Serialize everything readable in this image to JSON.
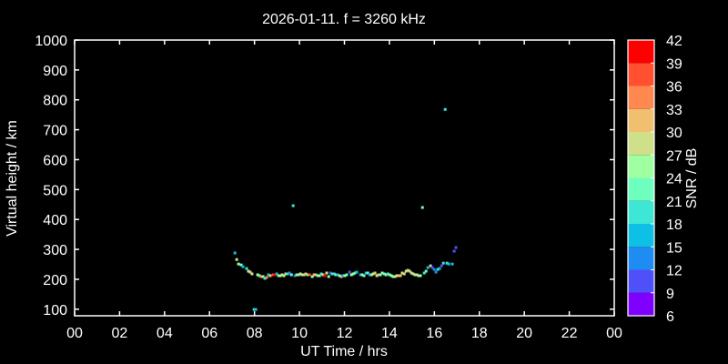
{
  "chart_data": {
    "type": "scatter",
    "title": "2026-01-11. f = 3260 kHz",
    "xlabel": "UT Time / hrs",
    "ylabel": "Virtual height / km",
    "xlim": [
      0,
      24
    ],
    "ylim": [
      78,
      1000
    ],
    "xticks": [
      "00",
      "02",
      "04",
      "06",
      "08",
      "10",
      "12",
      "14",
      "16",
      "18",
      "20",
      "22",
      "00"
    ],
    "yticks": [
      100,
      200,
      300,
      400,
      500,
      600,
      700,
      800,
      900,
      1000
    ],
    "grid": false,
    "colorbar": {
      "label": "SNR / dB",
      "ticks": [
        6,
        9,
        12,
        15,
        18,
        21,
        24,
        27,
        30,
        33,
        36,
        39,
        42
      ],
      "colors": [
        "#8000ff",
        "#5050fa",
        "#1e8cf0",
        "#0ec0e6",
        "#3ee6d6",
        "#6effbe",
        "#a0ffa0",
        "#d0e08a",
        "#f0c070",
        "#ff8850",
        "#ff5030",
        "#ff0000"
      ]
    },
    "points_columns": [
      "hour",
      "height_km",
      "snr_db"
    ],
    "points": [
      [
        7.13,
        288,
        16
      ],
      [
        7.21,
        266,
        28
      ],
      [
        7.29,
        251,
        25
      ],
      [
        7.41,
        248,
        22
      ],
      [
        7.49,
        242,
        16
      ],
      [
        7.65,
        236,
        19
      ],
      [
        7.73,
        227,
        25
      ],
      [
        7.81,
        224,
        31
      ],
      [
        7.89,
        218,
        28
      ],
      [
        8.14,
        215,
        25
      ],
      [
        8.22,
        212,
        22
      ],
      [
        8.3,
        209,
        34
      ],
      [
        8.38,
        209,
        25
      ],
      [
        8.46,
        203,
        19
      ],
      [
        8.54,
        206,
        34
      ],
      [
        8.62,
        215,
        16
      ],
      [
        8.7,
        212,
        31
      ],
      [
        8.83,
        215,
        37
      ],
      [
        8.9,
        215,
        40
      ],
      [
        8.99,
        218,
        16
      ],
      [
        9.07,
        212,
        28
      ],
      [
        9.15,
        212,
        25
      ],
      [
        9.23,
        215,
        28
      ],
      [
        9.31,
        212,
        25
      ],
      [
        9.39,
        218,
        28
      ],
      [
        9.47,
        218,
        19
      ],
      [
        9.55,
        221,
        13
      ],
      [
        9.64,
        215,
        22
      ],
      [
        9.8,
        212,
        13
      ],
      [
        9.88,
        215,
        22
      ],
      [
        9.96,
        215,
        28
      ],
      [
        10.04,
        218,
        25
      ],
      [
        10.12,
        215,
        28
      ],
      [
        10.2,
        215,
        28
      ],
      [
        10.28,
        218,
        31
      ],
      [
        10.36,
        215,
        22
      ],
      [
        10.45,
        215,
        37
      ],
      [
        10.57,
        209,
        25
      ],
      [
        10.65,
        215,
        31
      ],
      [
        10.73,
        215,
        31
      ],
      [
        10.81,
        212,
        22
      ],
      [
        10.89,
        212,
        25
      ],
      [
        10.97,
        218,
        19
      ],
      [
        11.05,
        215,
        28
      ],
      [
        11.13,
        212,
        40
      ],
      [
        11.21,
        221,
        28
      ],
      [
        11.3,
        209,
        25
      ],
      [
        11.38,
        221,
        10
      ],
      [
        11.46,
        218,
        19
      ],
      [
        11.54,
        218,
        19
      ],
      [
        11.62,
        215,
        22
      ],
      [
        11.7,
        215,
        16
      ],
      [
        11.78,
        212,
        25
      ],
      [
        11.86,
        209,
        31
      ],
      [
        11.94,
        212,
        16
      ],
      [
        12.02,
        212,
        25
      ],
      [
        12.1,
        215,
        22
      ],
      [
        12.23,
        224,
        10
      ],
      [
        12.31,
        215,
        25
      ],
      [
        12.39,
        218,
        25
      ],
      [
        12.47,
        221,
        22
      ],
      [
        12.55,
        224,
        16
      ],
      [
        12.71,
        215,
        13
      ],
      [
        12.79,
        215,
        25
      ],
      [
        12.87,
        212,
        22
      ],
      [
        12.96,
        221,
        16
      ],
      [
        13.04,
        221,
        22
      ],
      [
        13.12,
        215,
        13
      ],
      [
        13.2,
        215,
        25
      ],
      [
        13.28,
        218,
        25
      ],
      [
        13.36,
        221,
        31
      ],
      [
        13.44,
        212,
        28
      ],
      [
        13.52,
        215,
        31
      ],
      [
        13.6,
        215,
        22
      ],
      [
        13.68,
        221,
        25
      ],
      [
        13.77,
        218,
        22
      ],
      [
        13.85,
        215,
        25
      ],
      [
        13.93,
        218,
        19
      ],
      [
        14.01,
        215,
        22
      ],
      [
        14.09,
        212,
        25
      ],
      [
        14.17,
        209,
        25
      ],
      [
        14.25,
        209,
        25
      ],
      [
        14.33,
        212,
        28
      ],
      [
        14.41,
        212,
        31
      ],
      [
        14.49,
        212,
        31
      ],
      [
        14.57,
        221,
        28
      ],
      [
        14.66,
        218,
        28
      ],
      [
        14.74,
        227,
        28
      ],
      [
        14.82,
        230,
        28
      ],
      [
        14.9,
        227,
        28
      ],
      [
        14.98,
        221,
        28
      ],
      [
        15.06,
        218,
        28
      ],
      [
        15.14,
        215,
        25
      ],
      [
        15.22,
        215,
        28
      ],
      [
        15.3,
        212,
        25
      ],
      [
        15.38,
        212,
        25
      ],
      [
        15.55,
        221,
        19
      ],
      [
        15.63,
        227,
        22
      ],
      [
        15.71,
        239,
        16
      ],
      [
        15.83,
        245,
        28
      ],
      [
        15.91,
        239,
        10
      ],
      [
        15.99,
        233,
        13
      ],
      [
        16.07,
        224,
        13
      ],
      [
        16.15,
        233,
        19
      ],
      [
        16.23,
        236,
        16
      ],
      [
        16.32,
        245,
        10
      ],
      [
        16.4,
        254,
        19
      ],
      [
        16.56,
        254,
        19
      ],
      [
        16.64,
        251,
        16
      ],
      [
        16.8,
        251,
        16
      ],
      [
        16.88,
        294,
        10
      ],
      [
        16.96,
        306,
        10
      ],
      [
        7.98,
        99,
        19
      ],
      [
        8.06,
        99,
        16
      ],
      [
        9.72,
        446,
        19
      ],
      [
        15.47,
        440,
        22
      ],
      [
        16.48,
        768,
        19
      ]
    ]
  }
}
